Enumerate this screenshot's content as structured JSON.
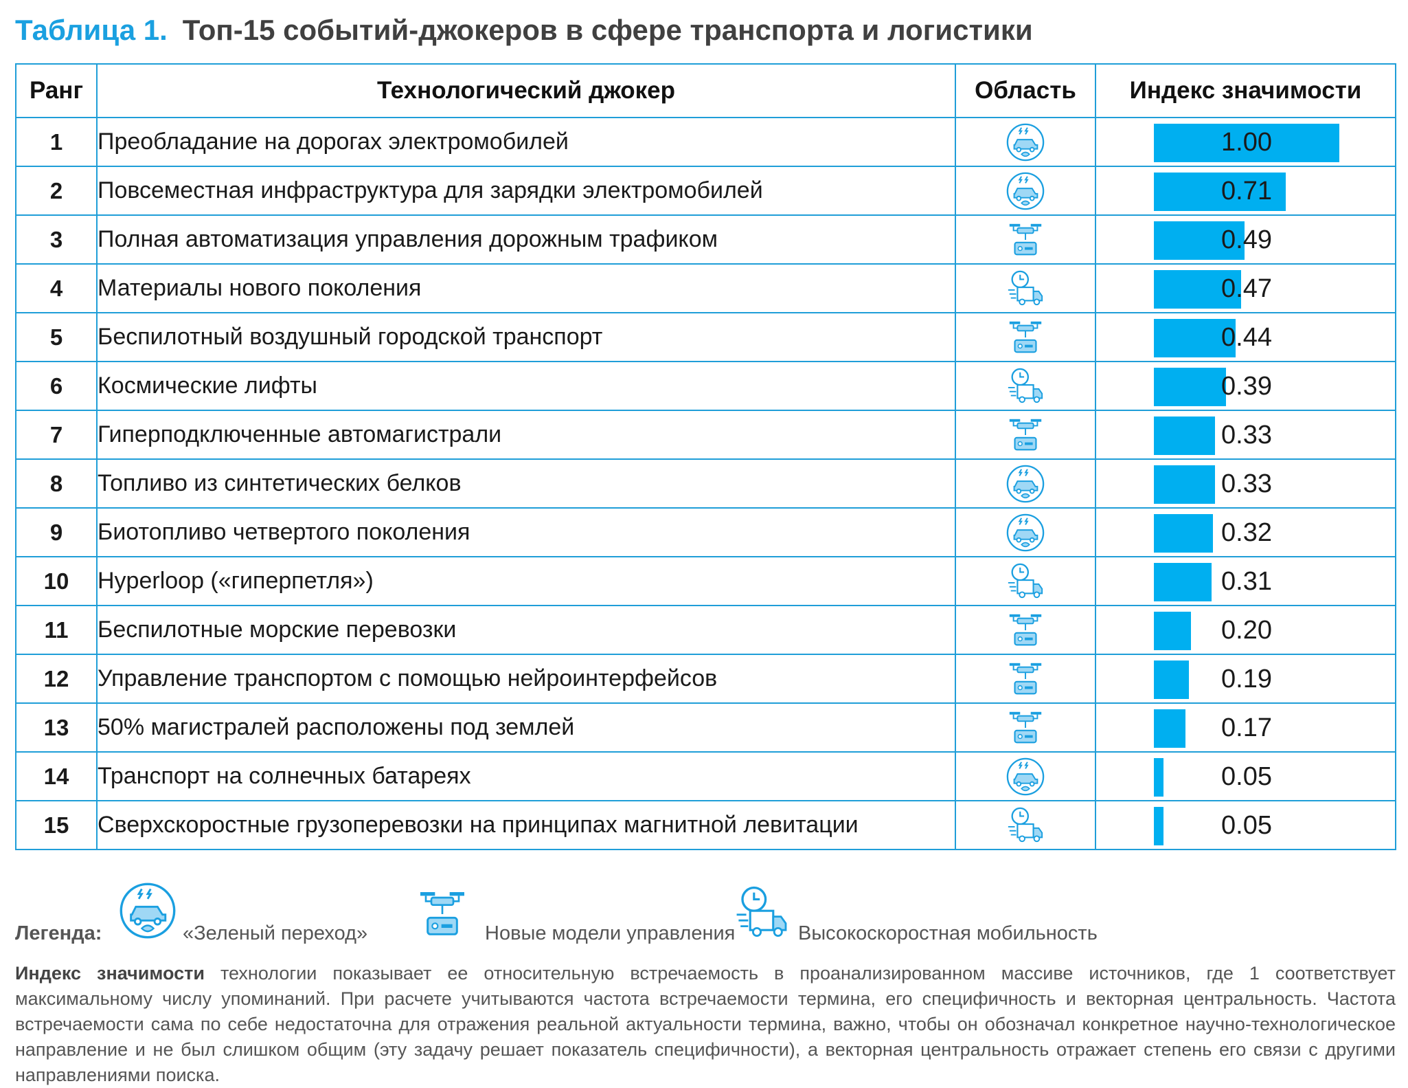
{
  "title": {
    "number": "Таблица 1.",
    "text": "Топ-15 событий-джокеров в сфере транспорта и логистики"
  },
  "columns": {
    "rank": "Ранг",
    "joker": "Технологический джокер",
    "area": "Область",
    "index": "Индекс значимости"
  },
  "rows": [
    {
      "rank": "1",
      "name": "Преобладание на дорогах электромобилей",
      "area": "green-transition-icon",
      "value": 1.0,
      "label": "1.00"
    },
    {
      "rank": "2",
      "name": "Повсеместная инфраструктура для зарядки электромобилей",
      "area": "green-transition-icon",
      "value": 0.71,
      "label": "0.71"
    },
    {
      "rank": "3",
      "name": "Полная автоматизация управления дорожным трафиком",
      "area": "drone-control-icon",
      "value": 0.49,
      "label": "0.49"
    },
    {
      "rank": "4",
      "name": "Материалы нового поколения",
      "area": "fast-truck-icon",
      "value": 0.47,
      "label": "0.47"
    },
    {
      "rank": "5",
      "name": "Беспилотный воздушный городской транспорт",
      "area": "drone-control-icon",
      "value": 0.44,
      "label": "0.44"
    },
    {
      "rank": "6",
      "name": "Космические лифты",
      "area": "fast-truck-icon",
      "value": 0.39,
      "label": "0.39"
    },
    {
      "rank": "7",
      "name": "Гиперподключенные автомагистрали",
      "area": "drone-control-icon",
      "value": 0.33,
      "label": "0.33"
    },
    {
      "rank": "8",
      "name": "Топливо из синтетических белков",
      "area": "green-transition-icon",
      "value": 0.33,
      "label": "0.33"
    },
    {
      "rank": "9",
      "name": "Биотопливо четвертого поколения",
      "area": "green-transition-icon",
      "value": 0.32,
      "label": "0.32"
    },
    {
      "rank": "10",
      "name": "Hyperloop («гиперпетля»)",
      "area": "fast-truck-icon",
      "value": 0.31,
      "label": "0.31"
    },
    {
      "rank": "11",
      "name": "Беспилотные морские перевозки",
      "area": "drone-control-icon",
      "value": 0.2,
      "label": "0.20"
    },
    {
      "rank": "12",
      "name": "Управление транспортом с помощью нейроинтерфейсов",
      "area": "drone-control-icon",
      "value": 0.19,
      "label": "0.19"
    },
    {
      "rank": "13",
      "name": "50% магистралей расположены под землей",
      "area": "drone-control-icon",
      "value": 0.17,
      "label": "0.17"
    },
    {
      "rank": "14",
      "name": "Транспорт на солнечных батареях",
      "area": "green-transition-icon",
      "value": 0.05,
      "label": "0.05"
    },
    {
      "rank": "15",
      "name": "Сверхскоростные грузоперевозки на принципах магнитной левитации",
      "area": "fast-truck-icon",
      "value": 0.05,
      "label": "0.05"
    }
  ],
  "legend": {
    "label": "Легенда:",
    "items": [
      {
        "icon": "green-transition-icon",
        "text": "«Зеленый переход»"
      },
      {
        "icon": "drone-control-icon",
        "text": "Новые модели управления"
      },
      {
        "icon": "fast-truck-icon",
        "text": "Высокоскоростная мобильность"
      }
    ]
  },
  "note": {
    "bold": "Индекс значимости",
    "text": " технологии показывает ее относительную встречаемость в проанализированном массиве источников, где 1 соответствует максимальному числу упоминаний. При расчете учитываются частота встречаемости термина, его специфичность и векторная центральность. Частота встречаемости сама по себе недостаточна для отражения реальной актуальности термина, важно, чтобы он обозначал конкретное научно-технологическое направление и не был слишком общим (эту задачу решает показатель специфичности), а векторная центральность отражает степень его связи с другими направлениями поиска."
  },
  "colors": {
    "accent": "#1aa0e0",
    "bar": "#00aff0",
    "border": "#1f9ed8"
  }
}
